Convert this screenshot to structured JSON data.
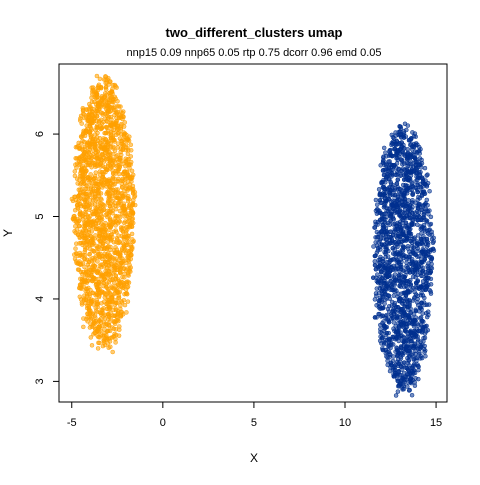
{
  "chart_data": {
    "type": "scatter",
    "title": "two_different_clusters umap",
    "subtitle": "nnp15 0.09 nnp65 0.05 rtp 0.75 dcorr 0.96 emd 0.05",
    "xlabel": "X",
    "ylabel": "Y",
    "xlim": [
      -5.7,
      15.6
    ],
    "ylim": [
      2.75,
      6.85
    ],
    "xticks": [
      -5,
      0,
      5,
      10,
      15
    ],
    "yticks": [
      3,
      4,
      5,
      6
    ],
    "grid": false,
    "legend": "none",
    "series": [
      {
        "color": "#FFA000",
        "center": [
          -3.25,
          5.05
        ],
        "x_range": [
          -4.9,
          -1.6
        ],
        "y_range": [
          3.45,
          6.7
        ],
        "n_points": 1800
      },
      {
        "color": "#00308F",
        "center": [
          13.2,
          4.5
        ],
        "x_range": [
          11.6,
          14.8
        ],
        "y_range": [
          2.92,
          6.12
        ],
        "n_points": 1800
      }
    ]
  }
}
